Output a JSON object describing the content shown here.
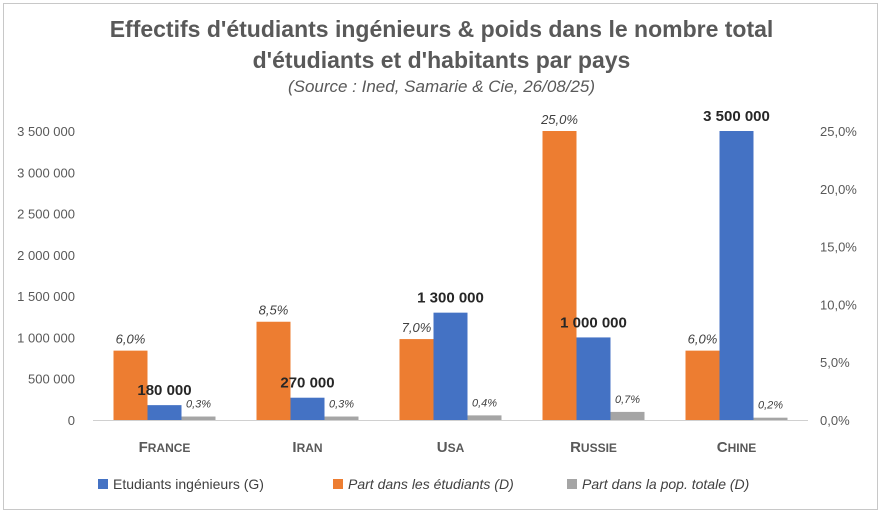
{
  "chart_data": {
    "type": "bar",
    "title": "Effectifs d'étudiants ingénieurs & poids dans le nombre total d'étudiants et d'habitants par pays",
    "title_lines": [
      "Effectifs d'étudiants ingénieurs & poids dans le nombre total",
      "d'étudiants et d'habitants par pays"
    ],
    "subtitle": "(Source  : Ined, Samarie & Cie, 26/08/25)",
    "categories": [
      "France",
      "Iran",
      "USA",
      "Russie",
      "Chine"
    ],
    "category_labels": [
      "FRANCE",
      "IRAN",
      "USA",
      "RUSSIE",
      "CHINE"
    ],
    "series": [
      {
        "name": "Etudiants ingénieurs (G)",
        "axis": "left",
        "color": "#4472c4",
        "values": [
          180000,
          270000,
          1300000,
          1000000,
          3500000
        ],
        "labels": [
          "180 000",
          "270 000",
          "1 300 000",
          "1 000 000",
          "3 500 000"
        ]
      },
      {
        "name": "Part dans les étudiants (D)",
        "axis": "right",
        "color": "#ed7d31",
        "values": [
          6.0,
          8.5,
          7.0,
          25.0,
          6.0
        ],
        "labels": [
          "6,0%",
          "8,5%",
          "7,0%",
          "25,0%",
          "6,0%"
        ]
      },
      {
        "name": "Part dans la pop. totale (D)",
        "axis": "right",
        "color": "#a5a5a5",
        "values": [
          0.3,
          0.3,
          0.4,
          0.7,
          0.2
        ],
        "labels": [
          "0,3%",
          "0,3%",
          "0,4%",
          "0,7%",
          "0,2%"
        ]
      }
    ],
    "left_axis": {
      "ylim": [
        0,
        3500000
      ],
      "ticks": [
        0,
        500000,
        1000000,
        1500000,
        2000000,
        2500000,
        3000000,
        3500000
      ],
      "tick_labels": [
        "0",
        "500 000",
        "1 000 000",
        "1 500 000",
        "2 000 000",
        "2 500 000",
        "3 000 000",
        "3 500 000"
      ]
    },
    "right_axis": {
      "ylim": [
        0,
        25
      ],
      "ticks": [
        0,
        5,
        10,
        15,
        20,
        25
      ],
      "tick_labels": [
        "0,0%",
        "5,0%",
        "10,0%",
        "15,0%",
        "20,0%",
        "25,0%"
      ]
    },
    "grid": false,
    "legend_position": "bottom"
  }
}
